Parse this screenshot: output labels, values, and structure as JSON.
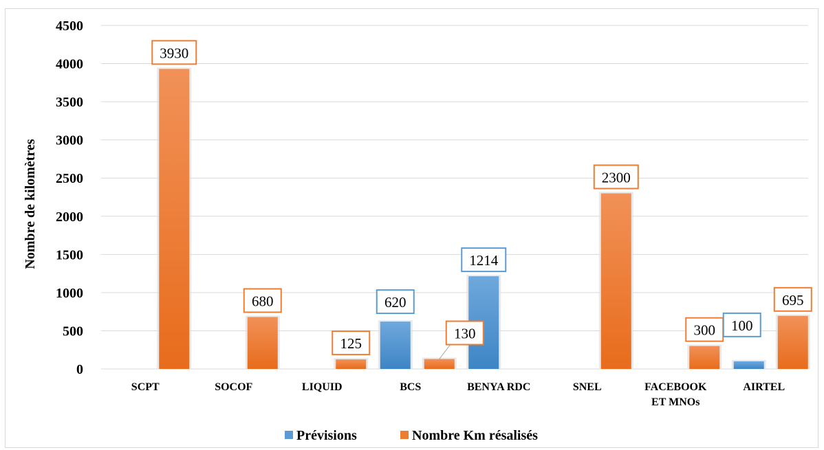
{
  "chart_data": {
    "type": "bar",
    "ylabel": "Nombre de kilomètres",
    "xlabel": "",
    "ylim": [
      0,
      4500
    ],
    "yticks": [
      0,
      500,
      1000,
      1500,
      2000,
      2500,
      3000,
      3500,
      4000,
      4500
    ],
    "grid": true,
    "legend_position": "bottom",
    "categories": [
      [
        "SCPT"
      ],
      [
        "SOCOF"
      ],
      [
        "LIQUID"
      ],
      [
        "BCS"
      ],
      [
        "BENYA RDC"
      ],
      [
        "SNEL"
      ],
      [
        "FACEBOOK",
        "ET MNOs"
      ],
      [
        "AIRTEL"
      ]
    ],
    "series": [
      {
        "name": "Prévisions",
        "color": "#5b9bd5",
        "values": [
          null,
          null,
          null,
          620,
          1214,
          null,
          null,
          100
        ]
      },
      {
        "name": "Nombre Km résalisés",
        "color": "#ed7d31",
        "values": [
          3930,
          680,
          125,
          130,
          null,
          2300,
          300,
          695
        ]
      }
    ]
  }
}
